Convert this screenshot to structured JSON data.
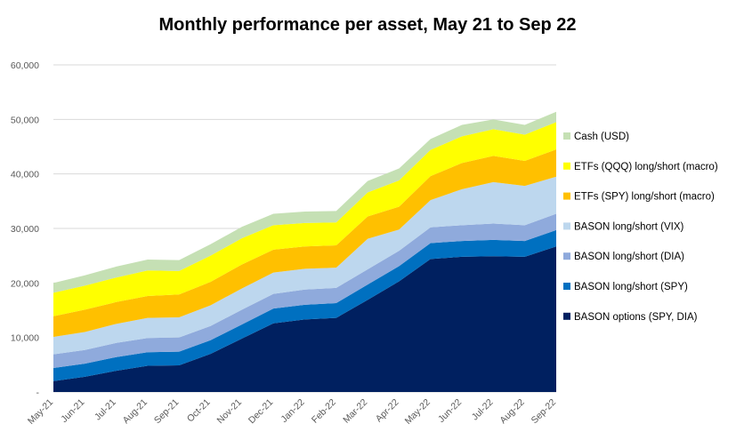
{
  "chart_data": {
    "type": "area",
    "stacked": true,
    "title": "Monthly performance per asset, May 21 to Sep 22",
    "xlabel": "",
    "ylabel": "",
    "ylim": [
      0,
      60000
    ],
    "yticks": [
      "-",
      "10,000",
      "20,000",
      "30,000",
      "40,000",
      "50,000",
      "60,000"
    ],
    "grid": true,
    "legend_position": "right",
    "categories": [
      "May-21",
      "Jun-21",
      "Jul-21",
      "Aug-21",
      "Sep-21",
      "Oct-21",
      "Nov-21",
      "Dec-21",
      "Jan-22",
      "Feb-22",
      "Mar-22",
      "Apr-22",
      "May-22",
      "Jun-22",
      "Jul-22",
      "Aug-22",
      "Sep-22"
    ],
    "series": [
      {
        "name": "BASON options (SPY, DIA)",
        "color": "#002060",
        "values": [
          2000,
          2800,
          3900,
          4800,
          4900,
          7000,
          9800,
          12600,
          13300,
          13600,
          16900,
          20300,
          24400,
          24800,
          24900,
          24800,
          26700
        ]
      },
      {
        "name": "BASON long/short (SPY)",
        "color": "#0070c0",
        "values": [
          2400,
          2400,
          2500,
          2500,
          2500,
          2500,
          2600,
          2700,
          2700,
          2700,
          2800,
          2800,
          2900,
          2900,
          3000,
          2900,
          3000
        ]
      },
      {
        "name": "BASON long/short (DIA)",
        "color": "#8faadc",
        "values": [
          2500,
          2500,
          2600,
          2600,
          2600,
          2600,
          2700,
          2700,
          2800,
          2800,
          2800,
          2800,
          2900,
          2900,
          3000,
          2900,
          3000
        ]
      },
      {
        "name": "BASON long/short (VIX)",
        "color": "#bdd7ee",
        "values": [
          3200,
          3300,
          3500,
          3700,
          3700,
          3800,
          3900,
          3900,
          3800,
          3700,
          5600,
          3900,
          5000,
          6600,
          7600,
          7200,
          6800
        ]
      },
      {
        "name": "ETFs (SPY) long/short (macro)",
        "color": "#ffc000",
        "values": [
          3800,
          4100,
          4000,
          4000,
          4200,
          4300,
          4400,
          4200,
          4100,
          4100,
          4100,
          4200,
          4400,
          4800,
          4800,
          4600,
          5000
        ]
      },
      {
        "name": "ETFs (QQQ) long/short (macro)",
        "color": "#ffff00",
        "values": [
          4300,
          4400,
          4500,
          4700,
          4300,
          4800,
          4800,
          4500,
          4300,
          4200,
          4400,
          4800,
          4800,
          4900,
          4900,
          4800,
          5000
        ]
      },
      {
        "name": "Cash (USD)",
        "color": "#c5e0b4",
        "values": [
          1800,
          1900,
          2000,
          2000,
          2000,
          2100,
          2100,
          2100,
          2100,
          2100,
          2100,
          2200,
          2000,
          2100,
          1800,
          1800,
          1900
        ]
      }
    ]
  }
}
